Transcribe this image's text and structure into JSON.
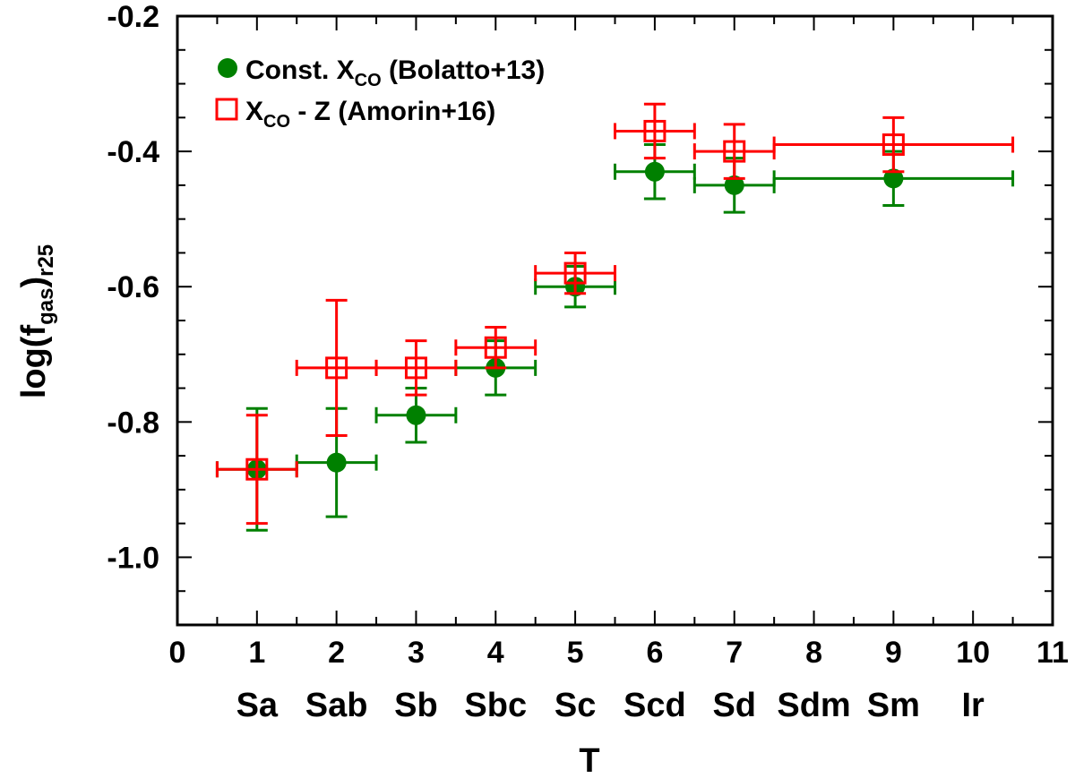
{
  "chart_data": {
    "type": "scatter",
    "title": "",
    "xlabel": "T",
    "ylabel_main": "log(f",
    "ylabel_sub1": "gas",
    "ylabel_close": ")",
    "ylabel_sub2": "r25",
    "xlim": [
      0,
      11
    ],
    "ylim": [
      -1.1,
      -0.2
    ],
    "x_ticks": [
      0,
      1,
      2,
      3,
      4,
      5,
      6,
      7,
      8,
      9,
      10,
      11
    ],
    "y_ticks": [
      -1.0,
      -0.8,
      -0.6,
      -0.4,
      -0.2
    ],
    "y_tick_labels": [
      "-1.0",
      "-0.8",
      "-0.6",
      "-0.4",
      "-0.2"
    ],
    "x_category_labels": [
      {
        "x": 1,
        "label": "Sa"
      },
      {
        "x": 2,
        "label": "Sab"
      },
      {
        "x": 3,
        "label": "Sb"
      },
      {
        "x": 4,
        "label": "Sbc"
      },
      {
        "x": 5,
        "label": "Sc"
      },
      {
        "x": 6,
        "label": "Scd"
      },
      {
        "x": 7,
        "label": "Sd"
      },
      {
        "x": 8,
        "label": "Sdm"
      },
      {
        "x": 9,
        "label": "Sm"
      },
      {
        "x": 10,
        "label": "Ir"
      }
    ],
    "legend_position": "top-left",
    "series": [
      {
        "name": "Const. X_CO (Bolatto+13)",
        "legend_main": "Const. X",
        "legend_sub": "CO",
        "legend_rest": " (Bolatto+13)",
        "color": "#008000",
        "marker": "filled-circle",
        "points": [
          {
            "x": 1,
            "y": -0.87,
            "xlo": 0.5,
            "xhi": 1.5,
            "ylo": -0.96,
            "yhi": -0.78
          },
          {
            "x": 2,
            "y": -0.86,
            "xlo": 1.5,
            "xhi": 2.5,
            "ylo": -0.94,
            "yhi": -0.78
          },
          {
            "x": 3,
            "y": -0.79,
            "xlo": 2.5,
            "xhi": 3.5,
            "ylo": -0.83,
            "yhi": -0.75
          },
          {
            "x": 4,
            "y": -0.72,
            "xlo": 3.5,
            "xhi": 4.5,
            "ylo": -0.76,
            "yhi": -0.68
          },
          {
            "x": 5,
            "y": -0.6,
            "xlo": 4.5,
            "xhi": 5.5,
            "ylo": -0.63,
            "yhi": -0.57
          },
          {
            "x": 6,
            "y": -0.43,
            "xlo": 5.5,
            "xhi": 6.5,
            "ylo": -0.47,
            "yhi": -0.39
          },
          {
            "x": 7,
            "y": -0.45,
            "xlo": 6.5,
            "xhi": 7.5,
            "ylo": -0.49,
            "yhi": -0.41
          },
          {
            "x": 9,
            "y": -0.44,
            "xlo": 7.5,
            "xhi": 10.5,
            "ylo": -0.48,
            "yhi": -0.4
          }
        ]
      },
      {
        "name": "X_CO - Z (Amorin+16)",
        "legend_main": "X",
        "legend_sub": "CO",
        "legend_rest": " - Z (Amorin+16)",
        "color": "#ff0000",
        "marker": "open-square",
        "points": [
          {
            "x": 1,
            "y": -0.87,
            "xlo": 0.5,
            "xhi": 1.5,
            "ylo": -0.95,
            "yhi": -0.79
          },
          {
            "x": 2,
            "y": -0.72,
            "xlo": 1.5,
            "xhi": 2.5,
            "ylo": -0.82,
            "yhi": -0.62
          },
          {
            "x": 3,
            "y": -0.72,
            "xlo": 2.5,
            "xhi": 3.5,
            "ylo": -0.76,
            "yhi": -0.68
          },
          {
            "x": 4,
            "y": -0.69,
            "xlo": 3.5,
            "xhi": 4.5,
            "ylo": -0.72,
            "yhi": -0.66
          },
          {
            "x": 5,
            "y": -0.58,
            "xlo": 4.5,
            "xhi": 5.5,
            "ylo": -0.61,
            "yhi": -0.55
          },
          {
            "x": 6,
            "y": -0.37,
            "xlo": 5.5,
            "xhi": 6.5,
            "ylo": -0.41,
            "yhi": -0.33
          },
          {
            "x": 7,
            "y": -0.4,
            "xlo": 6.5,
            "xhi": 7.5,
            "ylo": -0.44,
            "yhi": -0.36
          },
          {
            "x": 9,
            "y": -0.39,
            "xlo": 7.5,
            "xhi": 10.5,
            "ylo": -0.43,
            "yhi": -0.35
          }
        ]
      }
    ]
  }
}
